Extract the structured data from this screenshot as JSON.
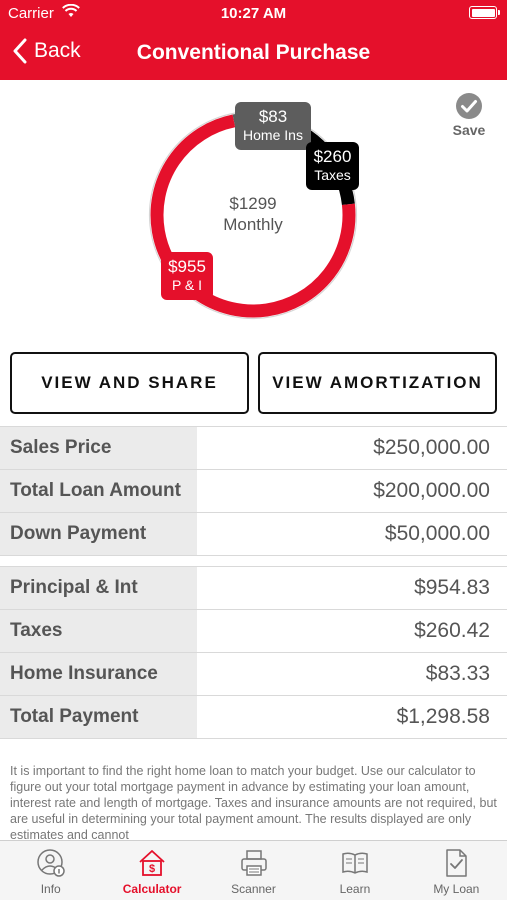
{
  "status_bar": {
    "carrier": "Carrier",
    "time": "10:27 AM"
  },
  "nav": {
    "back_label": "Back",
    "title": "Conventional Purchase"
  },
  "chart_data": {
    "type": "donut",
    "center": {
      "amount": "$1299",
      "label": "Monthly"
    },
    "segments": [
      {
        "name": "P & I",
        "display": "$955",
        "value": 955,
        "color": "#e5102b"
      },
      {
        "name": "Taxes",
        "display": "$260",
        "value": 260,
        "color": "#000000"
      },
      {
        "name": "Home Ins",
        "display": "$83",
        "value": 83,
        "color": "#5d5d5d"
      }
    ]
  },
  "save": {
    "label": "Save"
  },
  "buttons": {
    "view_share": "VIEW AND SHARE",
    "view_amortization": "VIEW AMORTIZATION"
  },
  "loan_table": [
    {
      "label": "Sales Price",
      "value": "$250,000.00"
    },
    {
      "label": "Total Loan Amount",
      "value": "$200,000.00"
    },
    {
      "label": "Down Payment",
      "value": "$50,000.00"
    }
  ],
  "payment_table": [
    {
      "label": "Principal & Int",
      "value": "$954.83"
    },
    {
      "label": "Taxes",
      "value": "$260.42"
    },
    {
      "label": "Home Insurance",
      "value": "$83.33"
    },
    {
      "label": "Total Payment",
      "value": "$1,298.58"
    }
  ],
  "disclaimer": "It is important to find the right home loan to match your budget. Use our calculator to figure out your total mortgage payment in advance by estimating your loan amount, interest rate and length of mortgage. Taxes and insurance amounts are not required, but are useful in determining your total payment amount.  The results displayed are only estimates and cannot",
  "tabs": [
    {
      "label": "Info",
      "icon": "info-person-icon"
    },
    {
      "label": "Calculator",
      "icon": "calculator-house-icon",
      "active": true
    },
    {
      "label": "Scanner",
      "icon": "printer-icon"
    },
    {
      "label": "Learn",
      "icon": "book-icon"
    },
    {
      "label": "My Loan",
      "icon": "document-check-icon"
    }
  ],
  "colors": {
    "brand_red": "#e5102b",
    "text_gray": "#555555",
    "label_bg": "#ebebeb"
  }
}
